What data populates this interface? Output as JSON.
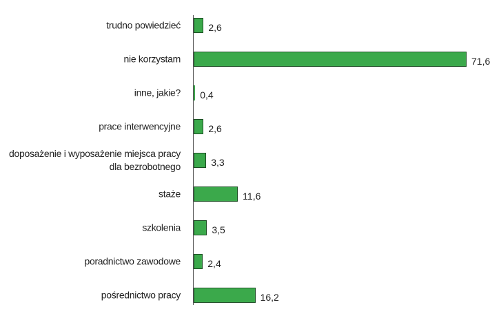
{
  "chart_data": {
    "type": "bar",
    "orientation": "horizontal",
    "categories": [
      "trudno powiedzieć",
      "nie korzystam",
      "inne, jakie?",
      "prace interwencyjne",
      "doposażenie i wyposażenie miejsca pracy dla bezrobotnego",
      "staże",
      "szkolenia",
      "poradnictwo zawodowe",
      "pośrednictwo pracy"
    ],
    "values": [
      2.6,
      71.6,
      0.4,
      2.6,
      3.3,
      11.6,
      3.5,
      2.4,
      16.2
    ],
    "value_labels": [
      "2,6",
      "71,6",
      "0,4",
      "2,6",
      "3,3",
      "11,6",
      "3,5",
      "2,4",
      "16,2"
    ],
    "color": "#3ba94b"
  }
}
